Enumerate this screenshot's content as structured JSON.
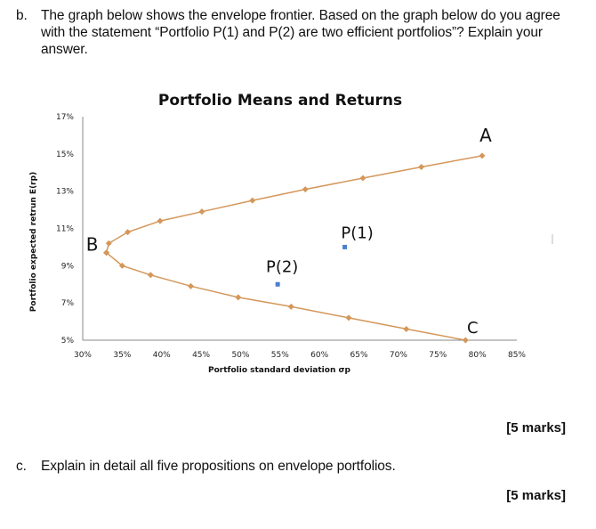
{
  "question_b": {
    "letter": "b.",
    "text": "The graph below shows the envelope frontier. Based on the graph below do you agree with the statement “Portfolio P(1) and P(2) are two efficient portfolios”? Explain your answer.",
    "marks": "[5 marks]"
  },
  "question_c": {
    "letter": "c.",
    "text": "Explain in detail all five propositions on envelope portfolios.",
    "marks": "[5 marks]"
  },
  "colors": {
    "frontier": "#d4975a",
    "portfolio_points": "#4a7fd0",
    "axis": "#888888"
  },
  "chart_data": {
    "type": "scatter",
    "title": "Portfolio Means and Returns",
    "xlabel": "Portfolio standard deviation σp",
    "ylabel": "Portfolio expected retrun E(rp)",
    "xlim": [
      30,
      85
    ],
    "ylim": [
      5,
      17
    ],
    "x_ticks": [
      "30%",
      "35%",
      "40%",
      "45%",
      "50%",
      "55%",
      "60%",
      "65%",
      "70%",
      "75%",
      "80%",
      "85%"
    ],
    "y_ticks": [
      "5%",
      "7%",
      "9%",
      "11%",
      "13%",
      "15%",
      "17%"
    ],
    "grid": false,
    "legend": "none",
    "series": [
      {
        "name": "Envelope frontier (upper)",
        "style": "line+diamond",
        "x": [
          33.0,
          33.3,
          35.7,
          39.8,
          45.1,
          51.5,
          58.2,
          65.5,
          72.9,
          80.6
        ],
        "y": [
          9.7,
          10.2,
          10.8,
          11.4,
          11.9,
          12.5,
          13.1,
          13.7,
          14.3,
          14.9
        ]
      },
      {
        "name": "Envelope frontier (lower)",
        "style": "line+diamond",
        "x": [
          33.0,
          35.0,
          38.6,
          43.7,
          49.7,
          56.4,
          63.7,
          71.0,
          78.5
        ],
        "y": [
          9.7,
          9.0,
          8.5,
          7.9,
          7.3,
          6.8,
          6.2,
          5.6,
          5.0
        ]
      },
      {
        "name": "Portfolios",
        "style": "square-marker",
        "x": [
          63.2,
          54.7
        ],
        "y": [
          10.0,
          8.0
        ],
        "labels": [
          "P(1)",
          "P(2)"
        ]
      }
    ],
    "annotations": [
      {
        "text": "A",
        "x": 80.6,
        "y": 14.9
      },
      {
        "text": "B",
        "x": 33.0,
        "y": 9.7
      },
      {
        "text": "C",
        "x": 78.5,
        "y": 5.0
      },
      {
        "text": "P(1)",
        "x": 63.2,
        "y": 10.0
      },
      {
        "text": "P(2)",
        "x": 54.7,
        "y": 8.0
      }
    ]
  }
}
